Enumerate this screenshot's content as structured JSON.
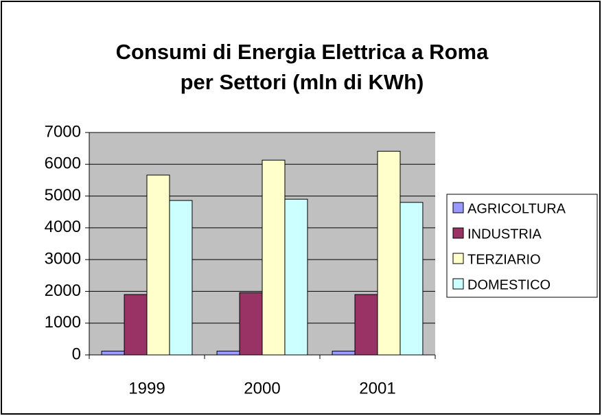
{
  "chart_data": {
    "type": "bar",
    "title": [
      "Consumi di Energia Elettrica a Roma",
      "per Settori (mln di KWh)"
    ],
    "categories": [
      "1999",
      "2000",
      "2001"
    ],
    "series": [
      {
        "name": "AGRICOLTURA",
        "color": "#9999ff",
        "values": [
          120,
          120,
          120
        ]
      },
      {
        "name": "INDUSTRIA",
        "color": "#993366",
        "values": [
          1900,
          1960,
          1900
        ]
      },
      {
        "name": "TERZIARIO",
        "color": "#ffffcc",
        "values": [
          5660,
          6130,
          6410
        ]
      },
      {
        "name": "DOMESTICO",
        "color": "#ccffff",
        "values": [
          4860,
          4900,
          4800
        ]
      }
    ],
    "ylim": [
      0,
      7000
    ],
    "yticks": [
      0,
      1000,
      2000,
      3000,
      4000,
      5000,
      6000,
      7000
    ],
    "grid": true,
    "legend": "right"
  }
}
